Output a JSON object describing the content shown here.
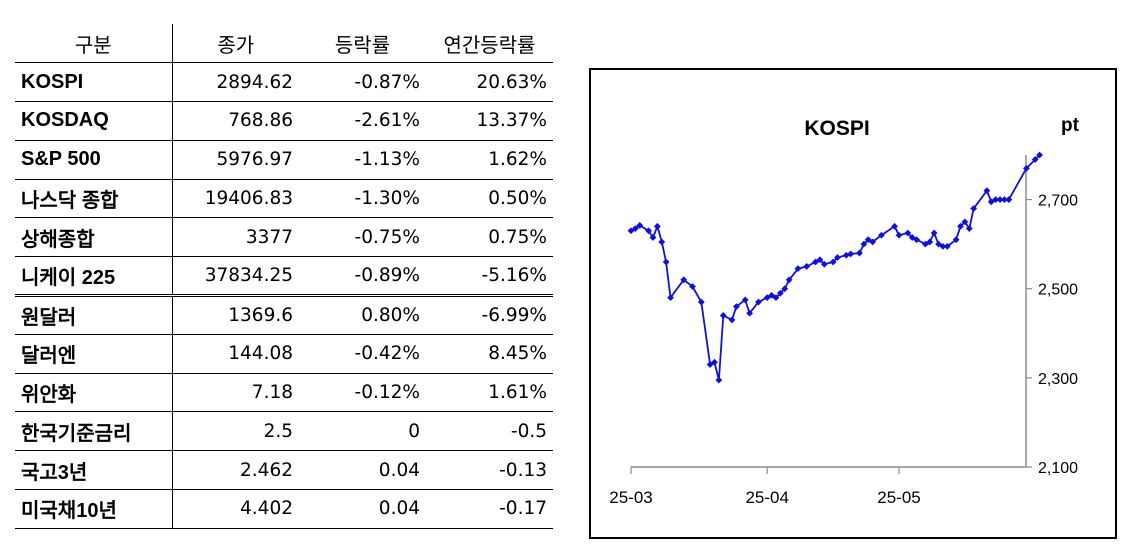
{
  "table": {
    "headers": [
      "구분",
      "종가",
      "등락률",
      "연간등락률"
    ],
    "rows": [
      {
        "name": "KOSPI",
        "close": "2894.62",
        "change": "-0.87%",
        "ytd": "20.63%"
      },
      {
        "name": "KOSDAQ",
        "close": "768.86",
        "change": "-2.61%",
        "ytd": "13.37%"
      },
      {
        "name": "S&P 500",
        "close": "5976.97",
        "change": "-1.13%",
        "ytd": "1.62%"
      },
      {
        "name": "나스닥 종합",
        "close": "19406.83",
        "change": "-1.30%",
        "ytd": "0.50%"
      },
      {
        "name": "상해종합",
        "close": "3377",
        "change": "-0.75%",
        "ytd": "0.75%"
      },
      {
        "name": "니케이 225",
        "close": "37834.25",
        "change": "-0.89%",
        "ytd": "-5.16%"
      },
      {
        "name": "원달러",
        "close": "1369.6",
        "change": "0.80%",
        "ytd": "-6.99%"
      },
      {
        "name": "달러엔",
        "close": "144.08",
        "change": "-0.42%",
        "ytd": "8.45%"
      },
      {
        "name": "위안화",
        "close": "7.18",
        "change": "-0.12%",
        "ytd": "1.61%"
      },
      {
        "name": "한국기준금리",
        "close": "2.5",
        "change": "0",
        "ytd": "-0.5"
      },
      {
        "name": "국고3년",
        "close": "2.462",
        "change": "0.04",
        "ytd": "-0.13"
      },
      {
        "name": "미국채10년",
        "close": "4.402",
        "change": "0.04",
        "ytd": "-0.17"
      }
    ]
  },
  "chart_data": {
    "type": "line",
    "title": "KOSPI",
    "ylabel": "pt",
    "xlabel": "",
    "ylim": [
      2100,
      2800
    ],
    "yticks": [
      2100,
      2300,
      2500,
      2700
    ],
    "ytick_labels": [
      "2,100",
      "2,300",
      "2,500",
      "2,700"
    ],
    "xticks": [
      "2025-03-01",
      "2025-04-01",
      "2025-05-01"
    ],
    "xtick_labels": [
      "25-03",
      "25-04",
      "25-05"
    ],
    "grid": false,
    "legend": "none",
    "color": "#1010d8",
    "series": [
      {
        "x": [
          "2025-03-01",
          "2025-03-02",
          "2025-03-03",
          "2025-03-05",
          "2025-03-06",
          "2025-03-07",
          "2025-03-08",
          "2025-03-09",
          "2025-03-10",
          "2025-03-13",
          "2025-03-15",
          "2025-03-17",
          "2025-03-19",
          "2025-03-20",
          "2025-03-21",
          "2025-03-22",
          "2025-03-24",
          "2025-03-25",
          "2025-03-27",
          "2025-03-28",
          "2025-03-30",
          "2025-04-01",
          "2025-04-02",
          "2025-04-03",
          "2025-04-04",
          "2025-04-05",
          "2025-04-06",
          "2025-04-08",
          "2025-04-10",
          "2025-04-12",
          "2025-04-13",
          "2025-04-14",
          "2025-04-16",
          "2025-04-17",
          "2025-04-19",
          "2025-04-20",
          "2025-04-22",
          "2025-04-23",
          "2025-04-24",
          "2025-04-25",
          "2025-04-27",
          "2025-04-30",
          "2025-05-01",
          "2025-05-03",
          "2025-05-04",
          "2025-05-05",
          "2025-05-07",
          "2025-05-08",
          "2025-05-09",
          "2025-05-10",
          "2025-05-11",
          "2025-05-12",
          "2025-05-14",
          "2025-05-15",
          "2025-05-16",
          "2025-05-17",
          "2025-05-18",
          "2025-05-21",
          "2025-05-22",
          "2025-05-23",
          "2025-05-24",
          "2025-05-25",
          "2025-05-26",
          "2025-05-30",
          "2025-06-01",
          "2025-06-02"
        ],
        "y": [
          2630,
          2635,
          2642,
          2630,
          2615,
          2640,
          2605,
          2560,
          2480,
          2520,
          2505,
          2470,
          2330,
          2335,
          2295,
          2440,
          2430,
          2460,
          2475,
          2445,
          2470,
          2480,
          2485,
          2480,
          2490,
          2500,
          2520,
          2545,
          2550,
          2560,
          2565,
          2555,
          2560,
          2570,
          2575,
          2578,
          2580,
          2600,
          2610,
          2605,
          2620,
          2640,
          2620,
          2625,
          2615,
          2610,
          2600,
          2605,
          2625,
          2600,
          2595,
          2595,
          2610,
          2640,
          2650,
          2635,
          2680,
          2720,
          2695,
          2700,
          2700,
          2700,
          2700,
          2770,
          2790,
          2800
        ]
      }
    ]
  }
}
